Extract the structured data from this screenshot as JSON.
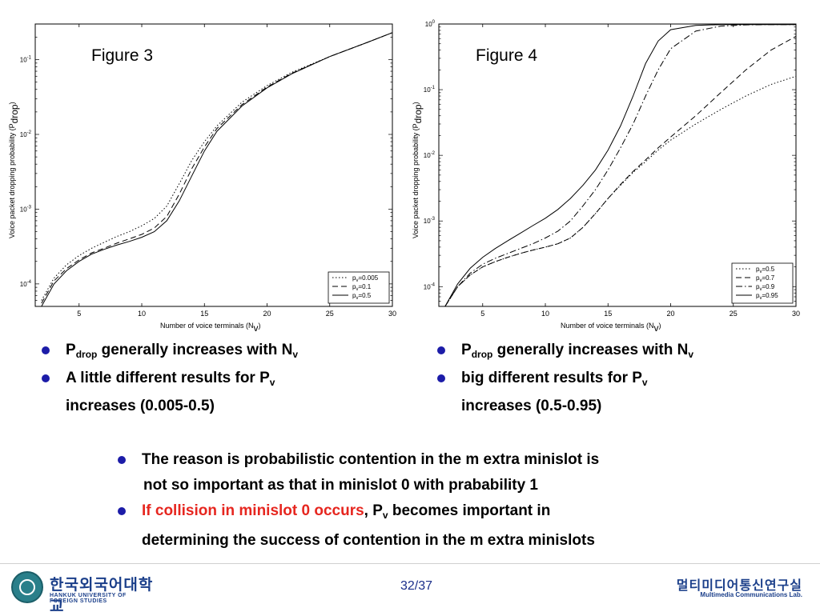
{
  "chart_data": [
    {
      "type": "line",
      "title": "Figure 3",
      "xlabel": "Number of voice terminals (N",
      "xlabel_sub": "v",
      "xlabel_end": ")",
      "ylabel": "Voice packet dropping probability (P",
      "ylabel_sub": "drop",
      "ylabel_end": ")",
      "xlim": [
        1.5,
        30
      ],
      "ylim": [
        5e-05,
        0.3
      ],
      "yscale": "log",
      "xticks": [
        5,
        10,
        15,
        20,
        25,
        30
      ],
      "yticks": [
        {
          "value": 0.0001,
          "mantissa": "10",
          "exp": "-4"
        },
        {
          "value": 0.001,
          "mantissa": "10",
          "exp": "-3"
        },
        {
          "value": 0.01,
          "mantissa": "10",
          "exp": "-2"
        },
        {
          "value": 0.1,
          "mantissa": "10",
          "exp": "-1"
        }
      ],
      "legend_position": "bottom-right",
      "series": [
        {
          "name": "p",
          "name_sub": "v",
          "name_val": "=0.005",
          "style": "dotted",
          "x": [
            2,
            3,
            4,
            5,
            6,
            7,
            8,
            9,
            10,
            11,
            12,
            13,
            14,
            15,
            16,
            18,
            20,
            22,
            25,
            28,
            30
          ],
          "y": [
            6e-05,
            0.00012,
            0.00018,
            0.00024,
            0.0003,
            0.00036,
            0.00043,
            0.0005,
            0.0006,
            0.00075,
            0.0011,
            0.0022,
            0.0045,
            0.008,
            0.013,
            0.027,
            0.045,
            0.068,
            0.11,
            0.17,
            0.23
          ]
        },
        {
          "name": "p",
          "name_sub": "v",
          "name_val": "=0.1",
          "style": "dashed",
          "x": [
            2,
            3,
            4,
            5,
            6,
            7,
            8,
            9,
            10,
            11,
            12,
            13,
            14,
            15,
            16,
            18,
            20,
            22,
            25,
            28,
            30
          ],
          "y": [
            5.5e-05,
            0.00011,
            0.00016,
            0.00021,
            0.00026,
            0.0003,
            0.00035,
            0.0004,
            0.00046,
            0.00056,
            0.0008,
            0.0016,
            0.0035,
            0.0068,
            0.012,
            0.025,
            0.043,
            0.066,
            0.11,
            0.17,
            0.23
          ]
        },
        {
          "name": "p",
          "name_sub": "v",
          "name_val": "=0.5",
          "style": "solid",
          "x": [
            2,
            3,
            4,
            5,
            6,
            7,
            8,
            9,
            10,
            11,
            12,
            13,
            14,
            15,
            16,
            18,
            20,
            22,
            25,
            28,
            30
          ],
          "y": [
            5e-05,
            0.0001,
            0.00015,
            0.0002,
            0.00025,
            0.00029,
            0.00033,
            0.00037,
            0.00042,
            0.0005,
            0.0007,
            0.0013,
            0.0028,
            0.006,
            0.011,
            0.024,
            0.042,
            0.065,
            0.11,
            0.17,
            0.23
          ]
        }
      ]
    },
    {
      "type": "line",
      "title": "Figure 4",
      "xlabel": "Number of voice terminals (N",
      "xlabel_sub": "v",
      "xlabel_end": ")",
      "ylabel": "Voice packet dropping probability (P",
      "ylabel_sub": "drop",
      "ylabel_end": ")",
      "xlim": [
        1.5,
        30
      ],
      "ylim": [
        5e-05,
        1
      ],
      "yscale": "log",
      "xticks": [
        5,
        10,
        15,
        20,
        25,
        30
      ],
      "yticks": [
        {
          "value": 0.0001,
          "mantissa": "10",
          "exp": "-4"
        },
        {
          "value": 0.001,
          "mantissa": "10",
          "exp": "-3"
        },
        {
          "value": 0.01,
          "mantissa": "10",
          "exp": "-2"
        },
        {
          "value": 0.1,
          "mantissa": "10",
          "exp": "-1"
        },
        {
          "value": 1,
          "mantissa": "10",
          "exp": "0"
        }
      ],
      "legend_position": "bottom-right",
      "series": [
        {
          "name": "p",
          "name_sub": "v",
          "name_val": "=0.5",
          "style": "dotted",
          "x": [
            2,
            3,
            4,
            5,
            6,
            7,
            8,
            9,
            10,
            11,
            12,
            13,
            14,
            15,
            16,
            17,
            18,
            19,
            20,
            22,
            24,
            26,
            28,
            30
          ],
          "y": [
            5e-05,
            0.0001,
            0.00015,
            0.0002,
            0.00024,
            0.00028,
            0.00032,
            0.00036,
            0.0004,
            0.00045,
            0.00055,
            0.0008,
            0.0013,
            0.0022,
            0.0035,
            0.0055,
            0.008,
            0.012,
            0.017,
            0.03,
            0.05,
            0.08,
            0.12,
            0.16
          ]
        },
        {
          "name": "p",
          "name_sub": "v",
          "name_val": "=0.7",
          "style": "dashed",
          "x": [
            2,
            3,
            4,
            5,
            6,
            7,
            8,
            9,
            10,
            11,
            12,
            13,
            14,
            15,
            16,
            17,
            18,
            19,
            20,
            22,
            24,
            26,
            28,
            30
          ],
          "y": [
            5e-05,
            0.0001,
            0.00015,
            0.0002,
            0.00024,
            0.00028,
            0.00032,
            0.00036,
            0.0004,
            0.00045,
            0.00055,
            0.0008,
            0.0013,
            0.0022,
            0.0036,
            0.0057,
            0.0085,
            0.013,
            0.019,
            0.04,
            0.09,
            0.2,
            0.4,
            0.65
          ]
        },
        {
          "name": "p",
          "name_sub": "v",
          "name_val": "=0.9",
          "style": "dashdot",
          "x": [
            2,
            3,
            4,
            5,
            6,
            7,
            8,
            9,
            10,
            11,
            12,
            13,
            14,
            15,
            16,
            17,
            18,
            19,
            20,
            22,
            24,
            26,
            28,
            30
          ],
          "y": [
            5e-05,
            0.0001,
            0.00016,
            0.00022,
            0.00027,
            0.00032,
            0.00038,
            0.00045,
            0.00055,
            0.0007,
            0.001,
            0.0017,
            0.003,
            0.006,
            0.013,
            0.03,
            0.08,
            0.2,
            0.42,
            0.78,
            0.93,
            0.97,
            0.98,
            0.98
          ]
        },
        {
          "name": "p",
          "name_sub": "v",
          "name_val": "=0.95",
          "style": "solid",
          "x": [
            2,
            3,
            4,
            5,
            6,
            7,
            8,
            9,
            10,
            11,
            12,
            13,
            14,
            15,
            16,
            17,
            18,
            19,
            20,
            22,
            24,
            26,
            28,
            30
          ],
          "y": [
            5e-05,
            0.00011,
            0.00019,
            0.00028,
            0.00038,
            0.0005,
            0.00065,
            0.00085,
            0.0011,
            0.0015,
            0.0022,
            0.0035,
            0.006,
            0.012,
            0.028,
            0.08,
            0.25,
            0.55,
            0.82,
            0.95,
            0.98,
            0.98,
            0.98,
            0.98
          ]
        }
      ]
    }
  ],
  "left_bullets": {
    "b1": {
      "p": "P",
      "drop": "drop",
      "text": " generally increases with N",
      "sub": "v"
    },
    "b2": {
      "line1": "A little different results for P",
      "sub": "v",
      "line2": "increases (0.005-0.5)"
    }
  },
  "right_bullets": {
    "b1": {
      "p": "P",
      "drop": "drop",
      "text": " generally increases with N",
      "sub": "v"
    },
    "b2": {
      "line1": "big different results for P",
      "sub": "v",
      "line2": "increases (0.5-0.95)"
    }
  },
  "bottom_bullets": {
    "b1_line1": "The reason is probabilistic contention in the m extra minislot is",
    "b1_line2": "not so important as that in minislot 0 with prabability 1",
    "b2_red": "If collision in minislot 0 occurs",
    "b2_after": ", P",
    "b2_sub": "v",
    "b2_rest": " becomes important in",
    "b2_line2": "determining the success of contention in the m extra minislots"
  },
  "footer": {
    "page": "32/37",
    "univ_kr": "한국외국어대학교",
    "univ_en": "HANKUK UNIVERSITY OF FOREIGN STUDIES",
    "lab_kr": "멀티미디어통신연구실",
    "lab_en": "Multimedia Communications Lab."
  },
  "colors": {
    "bullet": "#1c1ca8",
    "highlight": "#e6261f",
    "logo": "#1b3f8a"
  }
}
